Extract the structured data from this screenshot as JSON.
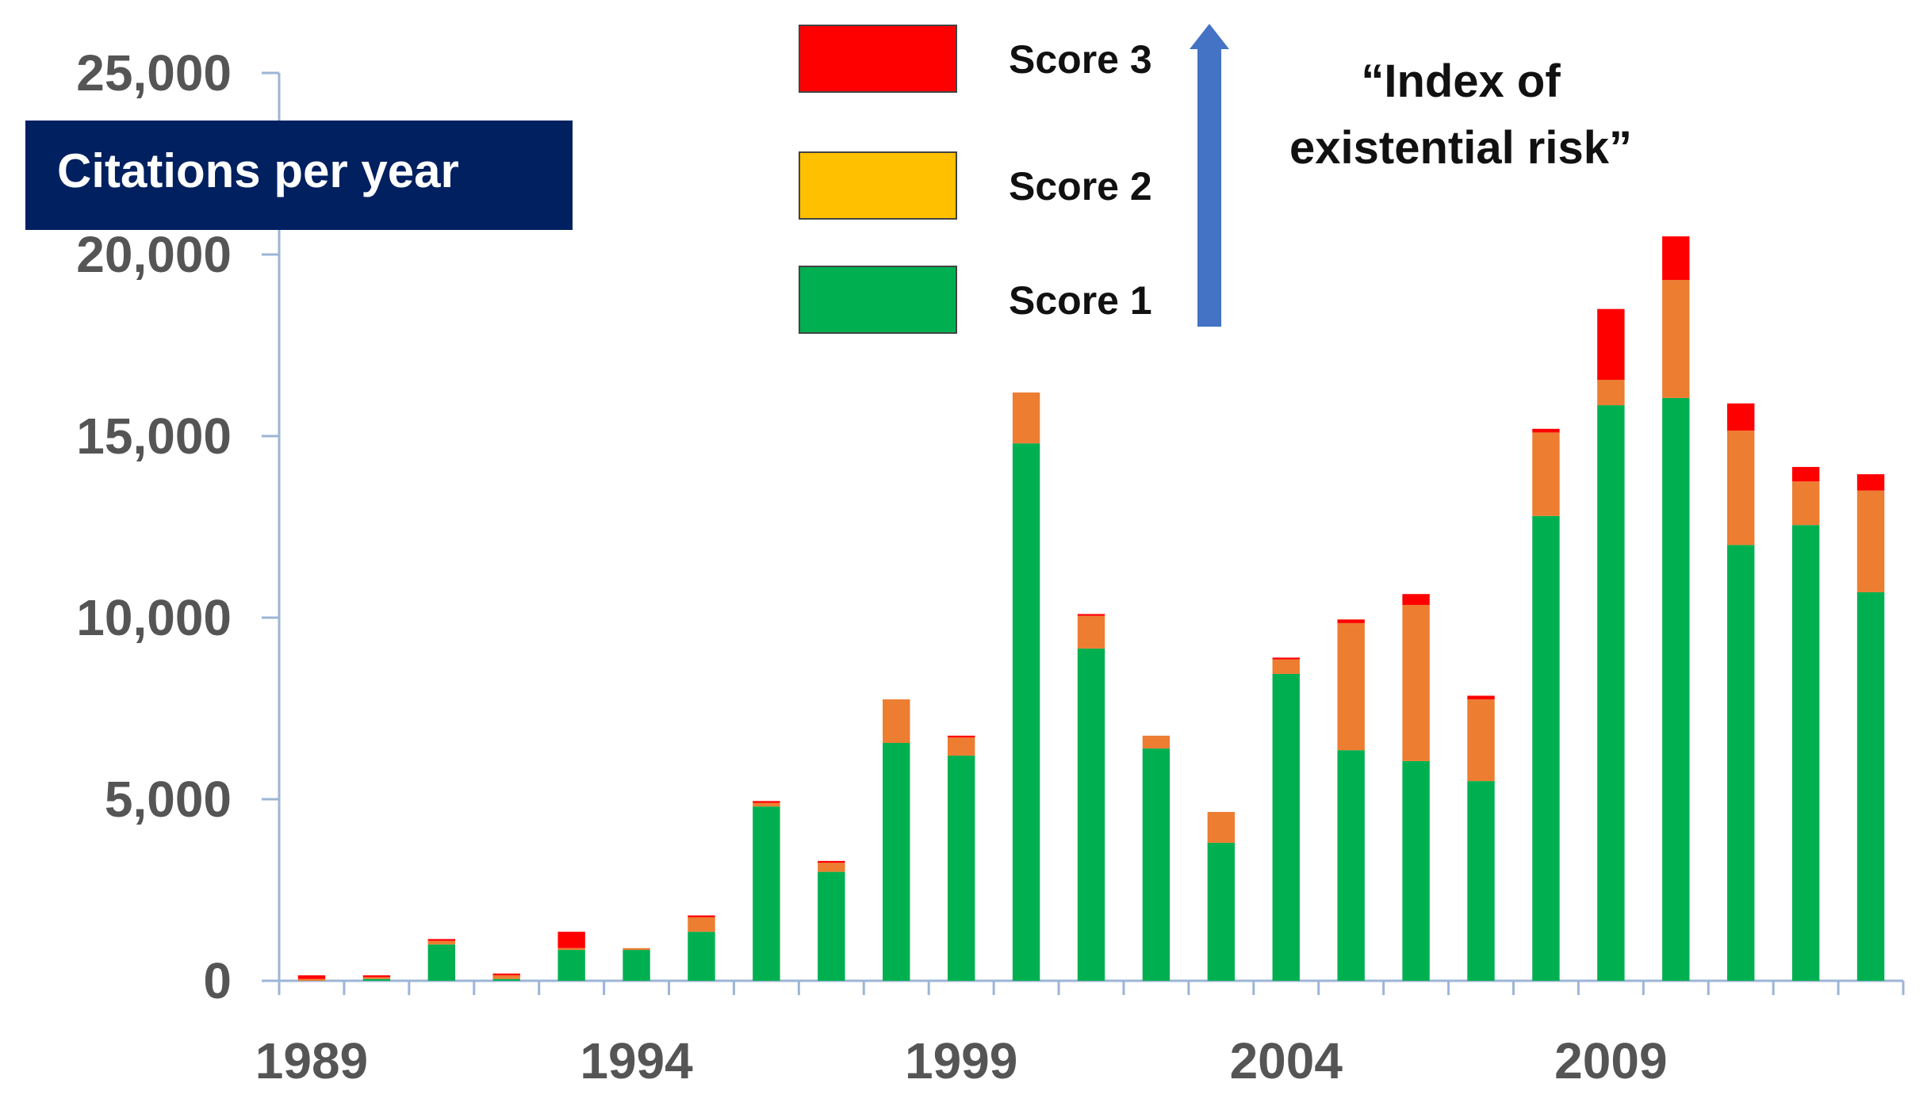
{
  "chart_data": {
    "type": "bar",
    "stacked": true,
    "ylabel": "Citations per year",
    "ylim": [
      0,
      25000
    ],
    "yticks": [
      0,
      5000,
      10000,
      15000,
      20000,
      25000
    ],
    "ytick_labels": [
      "0",
      "5,000",
      "10,000",
      "15,000",
      "20,000",
      "25,000"
    ],
    "x": [
      1989,
      1990,
      1991,
      1992,
      1993,
      1994,
      1995,
      1996,
      1997,
      1998,
      1999,
      2000,
      2001,
      2002,
      2003,
      2004,
      2005,
      2006,
      2007,
      2008,
      2009,
      2010,
      2011,
      2012,
      2013
    ],
    "xtick_labels": [
      {
        "value": 1989,
        "label": "1989"
      },
      {
        "value": 1994,
        "label": "1994"
      },
      {
        "value": 1999,
        "label": "1999"
      },
      {
        "value": 2004,
        "label": "2004"
      },
      {
        "value": 2009,
        "label": "2009"
      }
    ],
    "series": [
      {
        "name": "Score 1",
        "color": "#00b050",
        "values": [
          0,
          50,
          1000,
          50,
          850,
          850,
          1350,
          4800,
          3000,
          6550,
          6200,
          14800,
          9150,
          6400,
          3800,
          8450,
          6350,
          6050,
          5500,
          12800,
          15850,
          16050,
          12000,
          12550,
          10700
        ]
      },
      {
        "name": "Score 2",
        "color": "#ed7d31",
        "values": [
          50,
          50,
          100,
          100,
          50,
          50,
          400,
          100,
          250,
          1200,
          500,
          1400,
          900,
          350,
          850,
          400,
          3500,
          4300,
          2250,
          2300,
          700,
          3250,
          3150,
          1200,
          2800
        ]
      },
      {
        "name": "Score 3",
        "color": "#ff0000",
        "values": [
          100,
          50,
          50,
          50,
          450,
          0,
          50,
          50,
          50,
          0,
          50,
          0,
          50,
          0,
          0,
          50,
          100,
          300,
          100,
          100,
          1950,
          1200,
          750,
          400,
          450
        ]
      }
    ],
    "legend": {
      "placement": "top-center",
      "items": [
        {
          "name": "Score 3",
          "color": "#ff0000"
        },
        {
          "name": "Score 2",
          "color": "#ffc000"
        },
        {
          "name": "Score 1",
          "color": "#00b050"
        }
      ]
    },
    "annotation": {
      "lines": [
        "“Index of",
        "existential risk”"
      ],
      "arrow_color": "#4472c4"
    },
    "colors": {
      "axis": "#9db5d6",
      "tick_text": "#555555",
      "ylabel_bg": "#002060",
      "ylabel_text": "#ffffff"
    }
  }
}
